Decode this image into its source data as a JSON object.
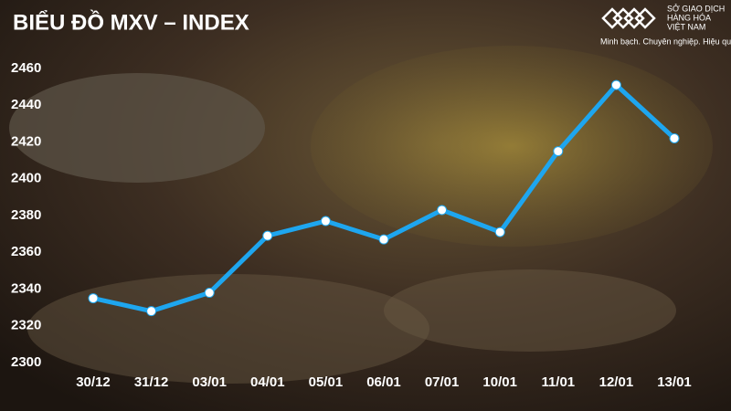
{
  "chart_data": {
    "type": "line",
    "title": "BIỂU ĐỒ MXV – INDEX",
    "categories": [
      "30/12",
      "31/12",
      "03/01",
      "04/01",
      "05/01",
      "06/01",
      "07/01",
      "10/01",
      "11/01",
      "12/01",
      "13/01"
    ],
    "values": [
      2335,
      2328,
      2338,
      2369,
      2377,
      2367,
      2383,
      2371,
      2415,
      2451,
      2422
    ],
    "color": "#1ea6ef",
    "ylim": [
      2300,
      2460
    ],
    "yticks": [
      2300,
      2320,
      2340,
      2360,
      2380,
      2400,
      2420,
      2440,
      2460
    ],
    "grid": false
  },
  "brand": {
    "name_lines": [
      "SỞ GIAO DỊCH",
      "HÀNG HÓA",
      "VIỆT NAM"
    ],
    "slogan": "Minh bạch. Chuyên nghiệp. Hiệu quả"
  }
}
